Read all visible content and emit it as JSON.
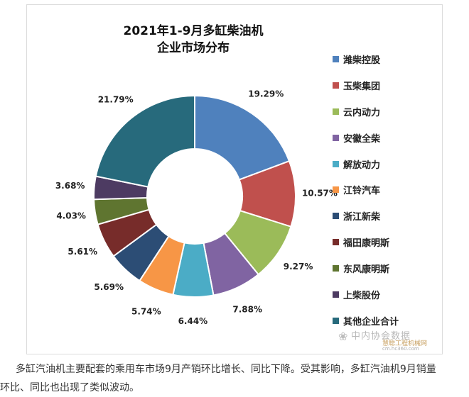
{
  "chart_data": {
    "type": "pie",
    "variant": "donut",
    "title": "2021年1-9月多缸柴油机",
    "subtitle": "企业市场分布",
    "categories": [
      "潍柴控股",
      "玉柴集团",
      "云内动力",
      "安徽全柴",
      "解放动力",
      "江铃汽车",
      "浙江新柴",
      "福田康明斯",
      "东风康明斯",
      "上柴股份",
      "其他企业合计"
    ],
    "values": [
      19.29,
      10.57,
      9.27,
      7.88,
      6.44,
      5.74,
      5.69,
      5.61,
      4.03,
      3.68,
      21.79
    ],
    "data_labels": [
      "19.29%",
      "10.57%",
      "9.27%",
      "7.88%",
      "6.44%",
      "5.74%",
      "5.69%",
      "5.61%",
      "4.03%",
      "3.68%",
      "21.79%"
    ],
    "colors": [
      "#4f81bd",
      "#c0504d",
      "#9bbb59",
      "#8064a2",
      "#4bacc6",
      "#f79646",
      "#2c4d75",
      "#772c2a",
      "#5f7530",
      "#4d3b62",
      "#276a7c"
    ],
    "legend_position": "right"
  },
  "watermark": {
    "org": "中内协会数据",
    "site": "慧聪工程机械网",
    "url": "cm.hc360.com"
  },
  "caption": {
    "line1": "多缸汽油机主要配套的乘用车市场9月产销环比增长、同比下降。受其影响，多缸汽油机9月销量",
    "line2": "环比、同比也出现了类似波动。"
  }
}
